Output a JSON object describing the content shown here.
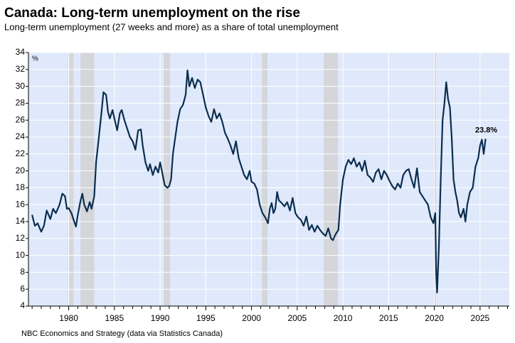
{
  "chart_data": {
    "type": "line",
    "title": "Canada: Long-term unemployment on the rise",
    "subtitle": "Long-term unemployment (27 weeks and more) as a share of total unemployment",
    "source": "NBC Economics and Strategy (data via Statistics Canada)",
    "ylabel": "%",
    "xlim": [
      1975.6,
      2028.2
    ],
    "xticks": [
      1980,
      1985,
      1990,
      1995,
      2000,
      2005,
      2010,
      2015,
      2020,
      2025
    ],
    "xminorticks": [
      1976,
      1977,
      1978,
      1979,
      1981,
      1982,
      1983,
      1984,
      1986,
      1987,
      1988,
      1989,
      1991,
      1992,
      1993,
      1994,
      1996,
      1997,
      1998,
      1999,
      2001,
      2002,
      2003,
      2004,
      2006,
      2007,
      2008,
      2009,
      2011,
      2012,
      2013,
      2014,
      2016,
      2017,
      2018,
      2019,
      2021,
      2022,
      2023,
      2024,
      2026,
      2027,
      2028
    ],
    "ylim": [
      4,
      34
    ],
    "yticks": [
      4,
      6,
      8,
      10,
      12,
      14,
      16,
      18,
      20,
      22,
      24,
      26,
      28,
      30,
      32,
      34
    ],
    "grid": true,
    "background": "#dfe9fb",
    "shaded_color": "#d4d6da",
    "shaded": [
      [
        1979.92,
        1980.54
      ],
      [
        1981.3,
        1982.8
      ],
      [
        1990.4,
        1991.1
      ],
      [
        2001.13,
        2001.75
      ],
      [
        2007.9,
        2009.45
      ],
      [
        2019.94,
        2020.17
      ]
    ],
    "series": [
      {
        "name": "Long-term unemployment share",
        "color": "#0b2e4f",
        "x": [
          1976.0,
          1976.3,
          1976.6,
          1977.0,
          1977.3,
          1977.6,
          1978.0,
          1978.3,
          1978.6,
          1979.0,
          1979.3,
          1979.6,
          1979.8,
          1980.0,
          1980.3,
          1980.6,
          1980.8,
          1981.0,
          1981.3,
          1981.5,
          1981.7,
          1982.0,
          1982.3,
          1982.5,
          1982.8,
          1983.0,
          1983.3,
          1983.6,
          1983.8,
          1984.1,
          1984.3,
          1984.5,
          1984.8,
          1985.0,
          1985.3,
          1985.6,
          1985.8,
          1986.1,
          1986.4,
          1986.7,
          1987.0,
          1987.3,
          1987.6,
          1987.9,
          1988.1,
          1988.4,
          1988.7,
          1988.9,
          1989.2,
          1989.5,
          1989.8,
          1990.0,
          1990.2,
          1990.5,
          1990.8,
          1991.0,
          1991.2,
          1991.4,
          1991.6,
          1991.9,
          1992.2,
          1992.5,
          1992.8,
          1993.0,
          1993.2,
          1993.5,
          1993.8,
          1994.1,
          1994.4,
          1994.7,
          1995.0,
          1995.3,
          1995.6,
          1995.9,
          1996.2,
          1996.5,
          1996.8,
          1997.1,
          1997.4,
          1997.7,
          1998.0,
          1998.3,
          1998.6,
          1998.9,
          1999.2,
          1999.5,
          1999.8,
          2000.0,
          2000.3,
          2000.6,
          2000.9,
          2001.2,
          2001.5,
          2001.8,
          2002.0,
          2002.2,
          2002.4,
          2002.6,
          2002.8,
          2003.0,
          2003.3,
          2003.6,
          2003.9,
          2004.2,
          2004.5,
          2004.8,
          2005.1,
          2005.4,
          2005.7,
          2006.0,
          2006.3,
          2006.6,
          2006.9,
          2007.2,
          2007.5,
          2007.8,
          2008.1,
          2008.4,
          2008.7,
          2008.9,
          2009.2,
          2009.5,
          2009.7,
          2010.0,
          2010.3,
          2010.6,
          2010.9,
          2011.2,
          2011.5,
          2011.8,
          2012.1,
          2012.4,
          2012.7,
          2013.0,
          2013.3,
          2013.6,
          2013.9,
          2014.2,
          2014.5,
          2014.8,
          2015.1,
          2015.4,
          2015.7,
          2016.0,
          2016.3,
          2016.6,
          2016.9,
          2017.2,
          2017.5,
          2017.8,
          2018.1,
          2018.4,
          2018.7,
          2019.0,
          2019.3,
          2019.6,
          2019.9,
          2020.1,
          2020.2,
          2020.3,
          2020.5,
          2020.7,
          2020.9,
          2021.1,
          2021.3,
          2021.5,
          2021.7,
          2021.9,
          2022.1,
          2022.3,
          2022.5,
          2022.7,
          2022.9,
          2023.2,
          2023.4,
          2023.6,
          2023.9,
          2024.2,
          2024.5,
          2024.8,
          2025.0,
          2025.2,
          2025.4,
          2025.6
        ],
        "values": [
          14.8,
          13.5,
          13.8,
          12.8,
          13.5,
          15.3,
          14.3,
          15.5,
          15.0,
          16.0,
          17.3,
          17.0,
          15.5,
          15.6,
          15.0,
          14.0,
          13.4,
          14.8,
          16.5,
          17.3,
          16.0,
          15.2,
          16.3,
          15.5,
          17.0,
          21.0,
          24.0,
          27.0,
          29.3,
          29.0,
          27.0,
          26.2,
          27.2,
          26.2,
          24.8,
          26.8,
          27.2,
          26.0,
          25.0,
          24.0,
          23.5,
          22.5,
          24.8,
          24.9,
          23.0,
          21.0,
          20.0,
          20.8,
          19.5,
          20.5,
          19.8,
          21.0,
          20.0,
          18.3,
          18.0,
          18.2,
          19.0,
          22.0,
          23.5,
          25.8,
          27.3,
          27.8,
          29.0,
          31.9,
          30.0,
          31.0,
          29.8,
          30.8,
          30.5,
          29.0,
          27.5,
          26.5,
          25.8,
          27.3,
          26.2,
          26.8,
          25.8,
          24.5,
          23.8,
          23.0,
          22.0,
          23.5,
          21.5,
          20.5,
          19.5,
          19.0,
          20.0,
          18.7,
          18.5,
          17.8,
          16.0,
          15.0,
          14.5,
          13.8,
          15.5,
          16.2,
          15.0,
          15.5,
          17.5,
          16.5,
          16.2,
          15.8,
          16.3,
          15.3,
          16.8,
          15.0,
          14.5,
          14.2,
          13.5,
          14.6,
          13.0,
          13.6,
          12.8,
          13.5,
          13.0,
          12.6,
          12.3,
          13.2,
          12.0,
          11.8,
          12.5,
          13.0,
          16.0,
          19.0,
          20.5,
          21.3,
          20.8,
          21.5,
          20.5,
          21.0,
          20.0,
          21.2,
          19.5,
          19.2,
          18.7,
          19.8,
          20.2,
          19.0,
          20.0,
          19.5,
          18.8,
          18.2,
          17.8,
          18.5,
          18.0,
          19.5,
          20.0,
          20.2,
          19.0,
          18.0,
          20.3,
          17.5,
          17.0,
          16.5,
          16.0,
          14.5,
          13.8,
          15.0,
          8.0,
          5.6,
          11.0,
          19.0,
          26.0,
          28.0,
          30.5,
          28.5,
          27.5,
          24.0,
          19.0,
          17.5,
          16.5,
          15.0,
          14.5,
          15.5,
          14.0,
          16.0,
          17.5,
          18.0,
          20.5,
          21.5,
          23.0,
          23.7,
          22.0,
          23.8
        ]
      }
    ],
    "annotations": [
      {
        "text": "23.8%",
        "x": 2025.6,
        "y": 23.8
      }
    ]
  }
}
